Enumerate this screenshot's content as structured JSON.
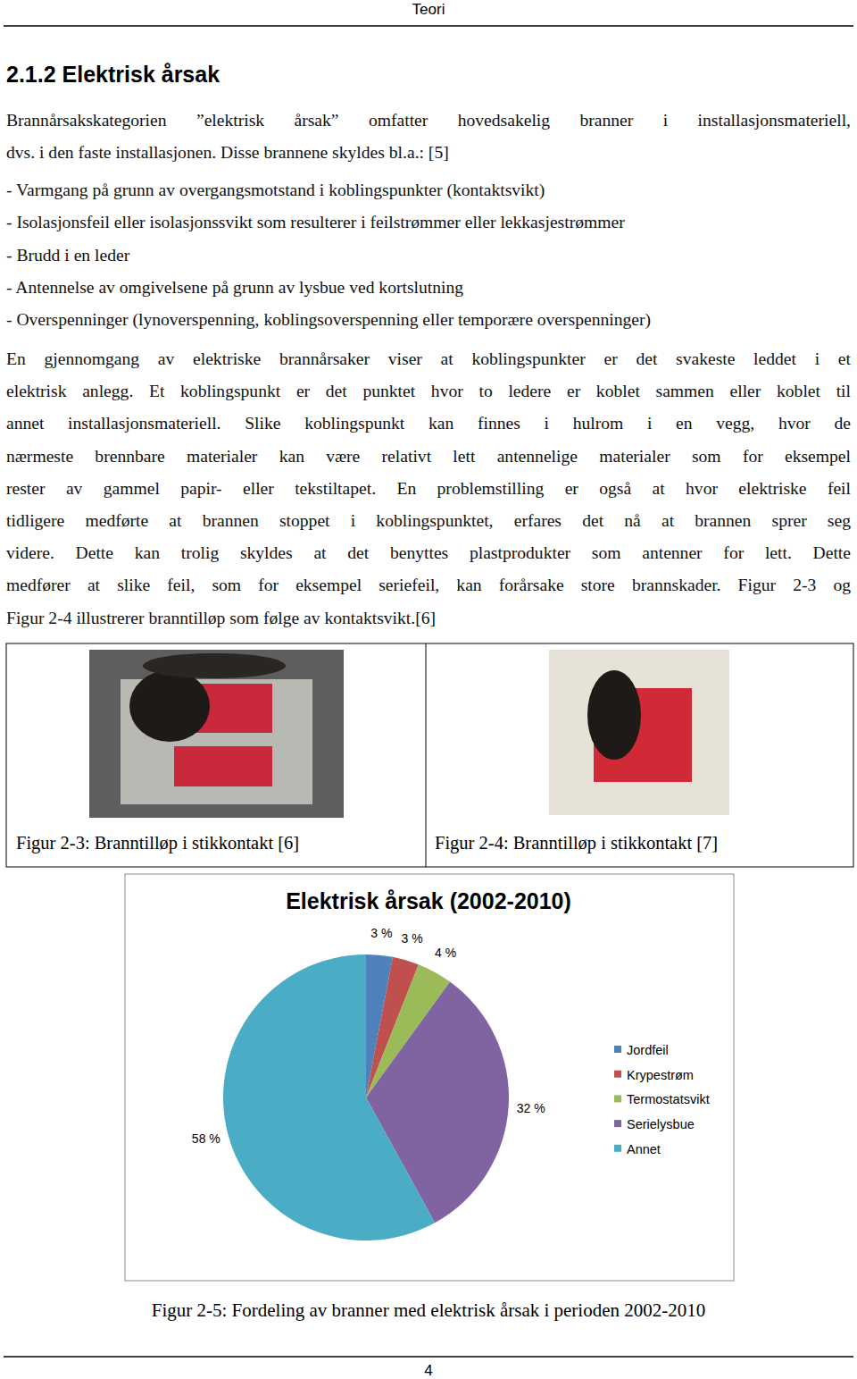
{
  "header": {
    "title": "Teori"
  },
  "section": {
    "title": "2.1.2 Elektrisk årsak"
  },
  "intro": {
    "lines": [
      "Brannårsakskategorien ”elektrisk årsak” omfatter hovedsakelig branner i installasjonsmateriell,",
      "dvs. i den faste installasjonen. Disse brannene skyldes bl.a.: [5]"
    ]
  },
  "bullets": [
    "- Varmgang på grunn av overgangsmotstand i koblingspunkter (kontaktsvikt)",
    "- Isolasjonsfeil eller isolasjonssvikt som resulterer i feilstrømmer eller lekkasjestrømmer",
    "- Brudd i en leder",
    "- Antennelse av omgivelsene på grunn av lysbue ved kortslutning",
    "- Overspenninger (lynoverspenning, koblingsoverspenning eller temporære overspenninger)"
  ],
  "body": {
    "lines": [
      "En gjennomgang av elektriske brannårsaker viser at koblingspunkter er det svakeste leddet i et",
      "elektrisk anlegg. Et koblingspunkt er det punktet hvor to ledere er koblet sammen eller koblet til",
      "annet installasjonsmateriell. Slike koblingspunkt kan finnes i hulrom i en vegg, hvor de",
      "nærmeste brennbare materialer kan være relativt lett antennelige materialer som for eksempel",
      "rester av gammel papir- eller tekstiltapet. En problemstilling er også at hvor elektriske feil",
      "tidligere medførte at brannen stoppet i koblingspunktet, erfares det nå at brannen sprer seg",
      "videre. Dette kan trolig skyldes at det benyttes plastprodukter som antenner for lett. Dette",
      "medfører at slike feil, som for eksempel seriefeil, kan forårsake store brannskader. Figur 2-3 og",
      "Figur 2-4 illustrerer branntilløp som følge av kontaktsvikt.[6]"
    ]
  },
  "figures": [
    {
      "caption": "Figur 2-3: Branntilløp i stikkontakt [6]"
    },
    {
      "caption": "Figur 2-4: Branntilløp i stikkontakt [7]"
    }
  ],
  "chart_caption": "Figur 2-5: Fordeling av branner med elektrisk årsak i perioden 2002-2010",
  "footer": {
    "page": 4
  },
  "chart_data": {
    "type": "pie",
    "title": "Elektrisk årsak (2002-2010)",
    "categories": [
      "Jordfeil",
      "Krypestrøm",
      "Termostatsvikt",
      "Serielysbue",
      "Annet"
    ],
    "values": [
      3,
      3,
      4,
      32,
      58
    ],
    "value_labels": [
      "3 %",
      "3 %",
      "4 %",
      "32 %",
      "58 %"
    ],
    "colors": [
      "#4f81bd",
      "#c0504d",
      "#9bbb59",
      "#8064a2",
      "#4bacc6"
    ],
    "data_labels": true,
    "legend": "right"
  }
}
